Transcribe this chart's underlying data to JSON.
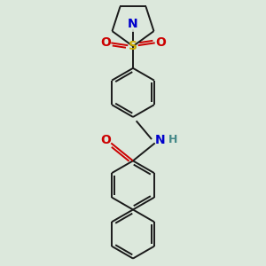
{
  "background_color": "#dce8dc",
  "line_color": "#1a1a1a",
  "bond_lw": 1.4,
  "figsize": [
    3.0,
    3.0
  ],
  "dpi": 100,
  "colors": {
    "N": "#0000cc",
    "O": "#cc0000",
    "S": "#ccaa00",
    "C": "#1a1a1a",
    "H": "#448888"
  },
  "xlim": [
    -1.2,
    1.2
  ],
  "ylim": [
    -3.8,
    2.4
  ]
}
